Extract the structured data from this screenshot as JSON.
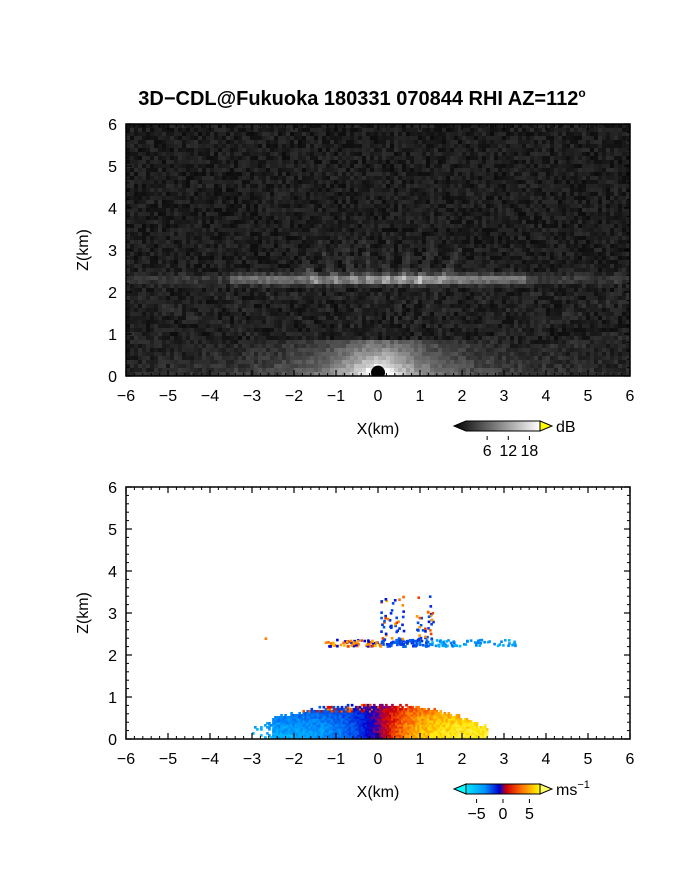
{
  "title": "3D−CDL@Fukuoka 180331 070844 RHI AZ=112",
  "title_sup": "o",
  "chart_data": [
    {
      "type": "heatmap",
      "quantity": "dB",
      "xlabel": "X(km)",
      "ylabel": "Z(km)",
      "xlim": [
        -6,
        6
      ],
      "ylim": [
        0,
        6
      ],
      "xticks": [
        "−6",
        "−5",
        "−4",
        "−3",
        "−2",
        "−1",
        "0",
        "1",
        "2",
        "3",
        "4",
        "5",
        "6"
      ],
      "yticks": [
        "0",
        "1",
        "2",
        "3",
        "4",
        "5",
        "6"
      ],
      "colorbar": {
        "label": "dB",
        "ticks": [
          "6",
          "12",
          "18"
        ],
        "tick_values": [
          6,
          12,
          18
        ],
        "colormap": "grayscale"
      }
    },
    {
      "type": "heatmap",
      "quantity": "radial velocity",
      "xlabel": "X(km)",
      "ylabel": "Z(km)",
      "xlim": [
        -6,
        6
      ],
      "ylim": [
        0,
        6
      ],
      "xticks": [
        "−6",
        "−5",
        "−4",
        "−3",
        "−2",
        "−1",
        "0",
        "1",
        "2",
        "3",
        "4",
        "5",
        "6"
      ],
      "yticks": [
        "0",
        "1",
        "2",
        "3",
        "4",
        "5",
        "6"
      ],
      "colorbar": {
        "label": "ms",
        "label_sup": "−1",
        "ticks": [
          "−5",
          "0",
          "5"
        ],
        "tick_values": [
          -5,
          0,
          5
        ],
        "colormap": "blue-red"
      }
    }
  ]
}
